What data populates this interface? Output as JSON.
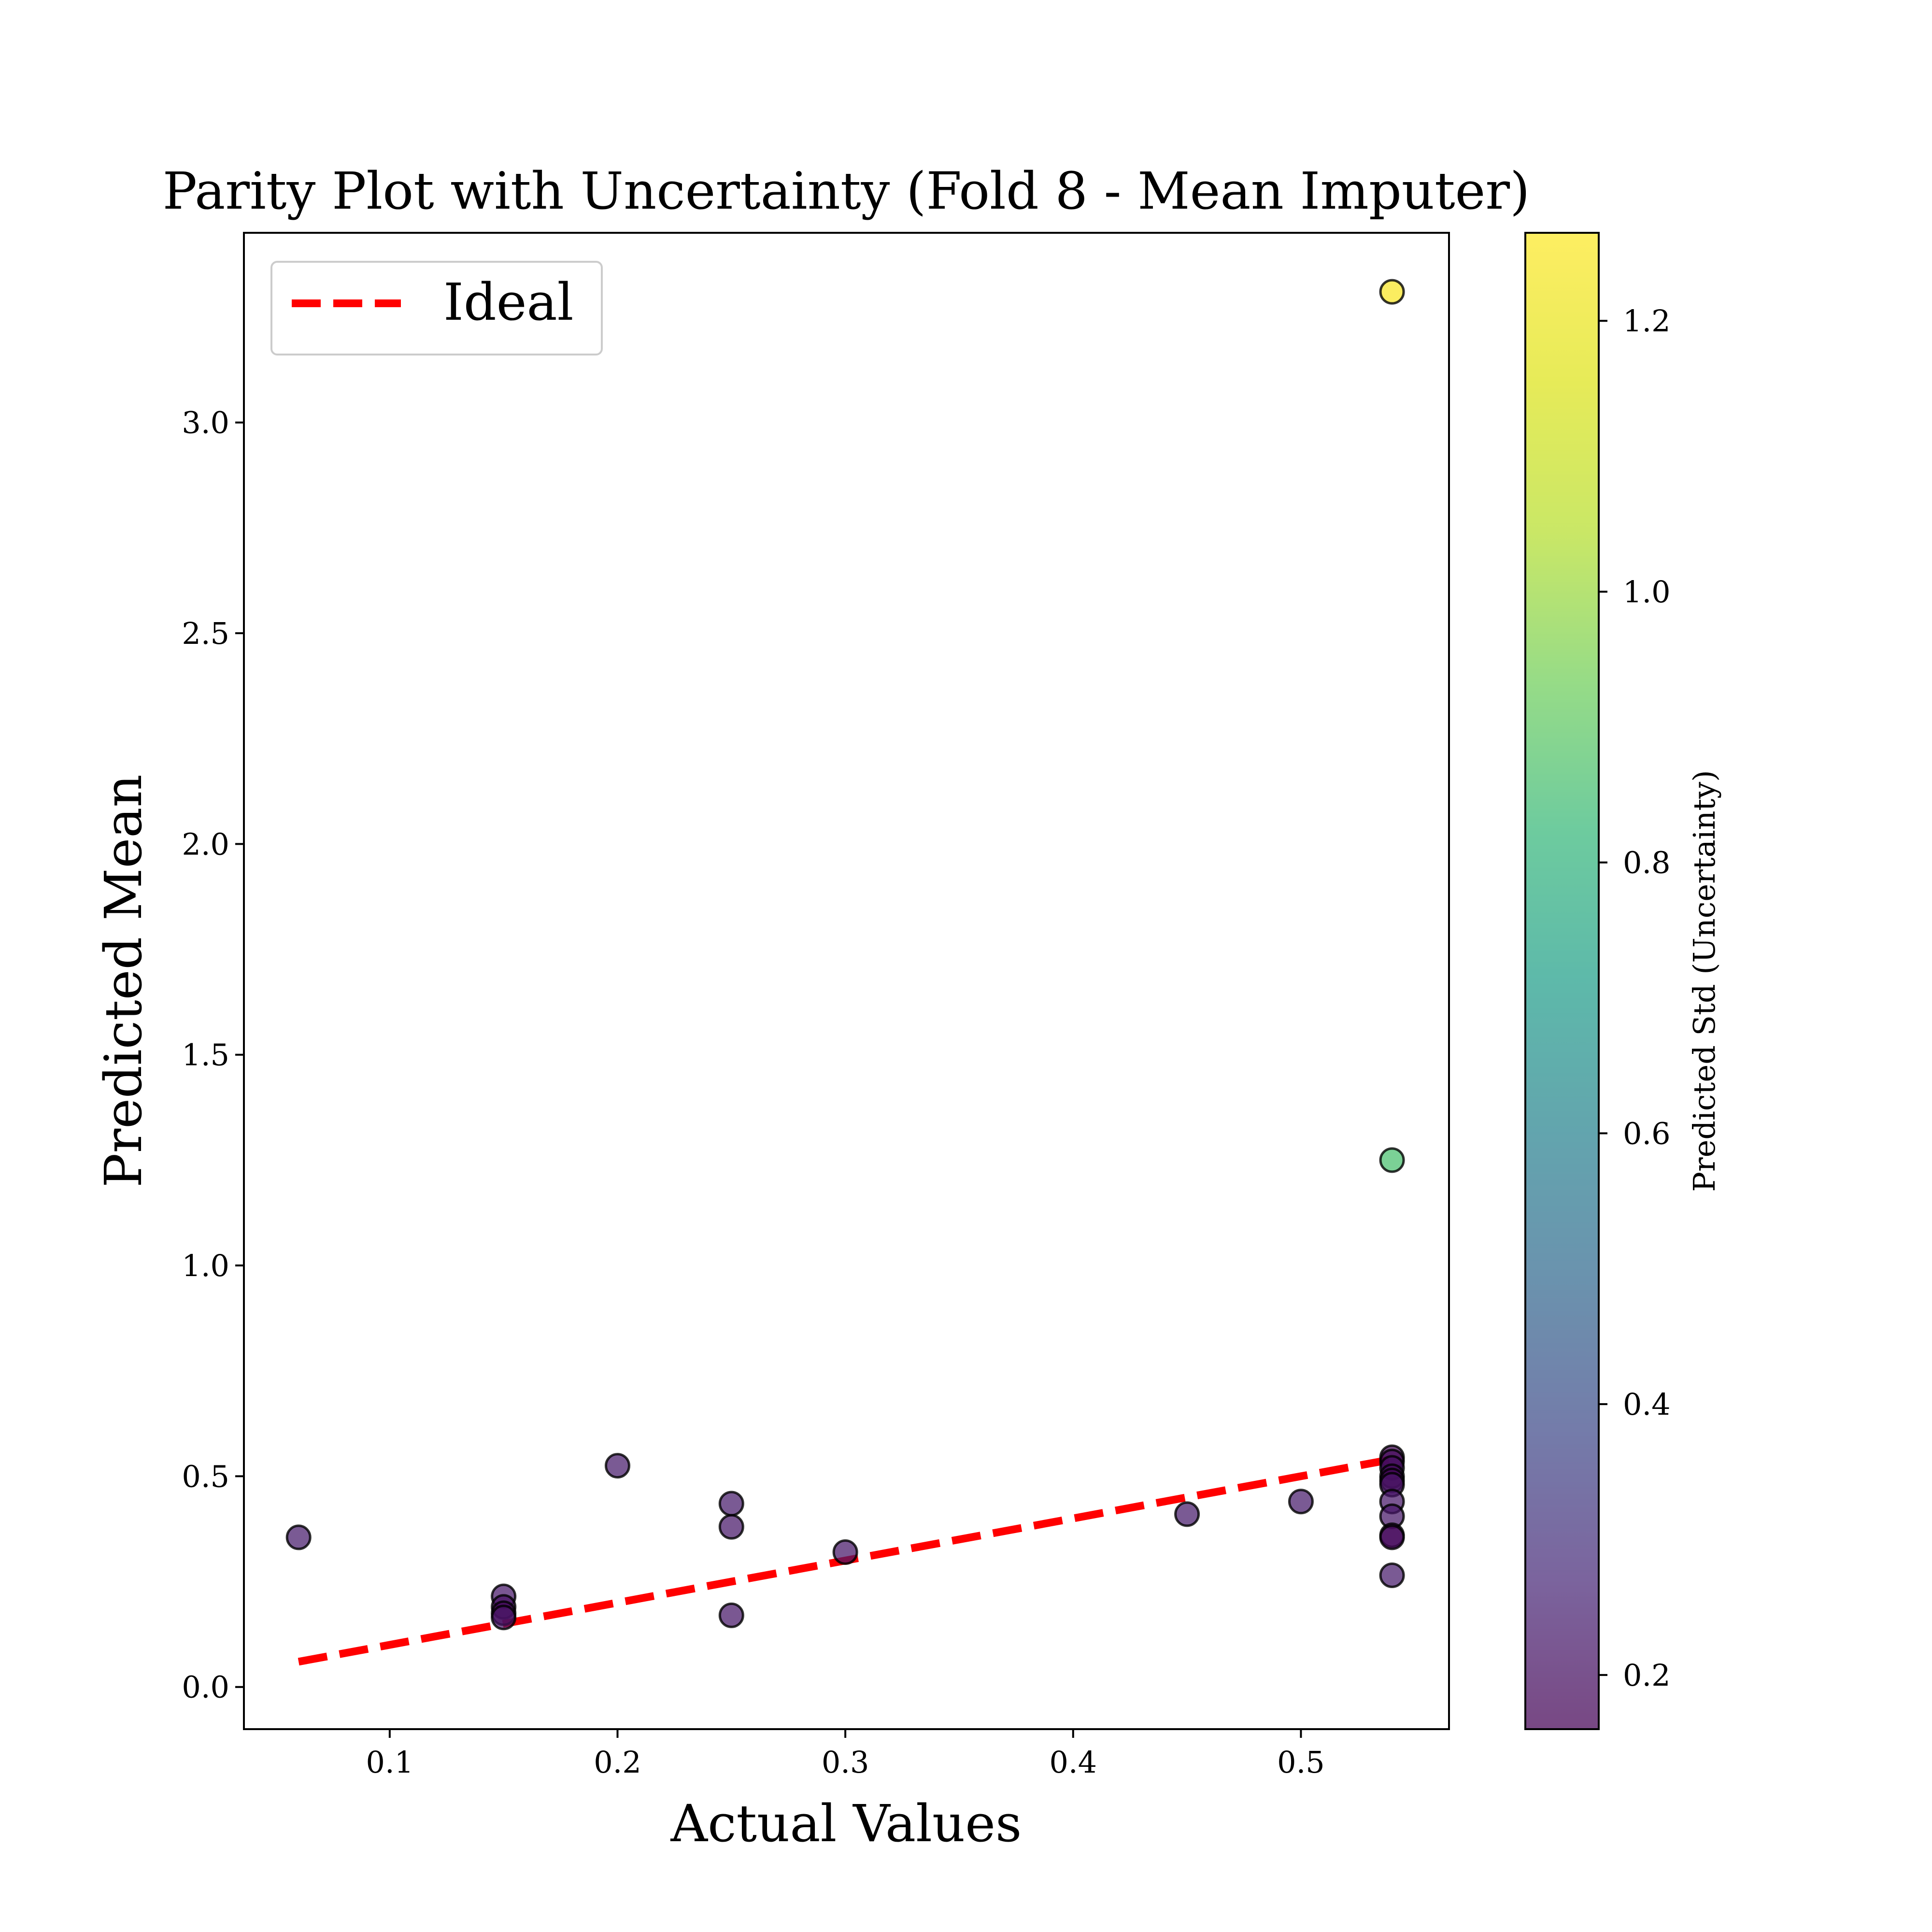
{
  "chart_data": {
    "type": "scatter",
    "title": "Parity Plot with Uncertainty (Fold 8 - Mean Imputer)",
    "xlabel": "Actual Values",
    "ylabel": "Predicted Mean",
    "xlim": [
      0.036,
      0.565
    ],
    "ylim": [
      -0.1,
      3.45
    ],
    "x_ticks": [
      0.1,
      0.2,
      0.3,
      0.4,
      0.5
    ],
    "x_tick_labels": [
      "0.1",
      "0.2",
      "0.3",
      "0.4",
      "0.5"
    ],
    "y_ticks": [
      0.0,
      0.5,
      1.0,
      1.5,
      2.0,
      2.5,
      3.0
    ],
    "y_tick_labels": [
      "0.0",
      "0.5",
      "1.0",
      "1.5",
      "2.0",
      "2.5",
      "3.0"
    ],
    "grid": false,
    "legend": {
      "placement": "upper-left",
      "entries": [
        "Ideal"
      ]
    },
    "ideal_line": {
      "label": "Ideal",
      "x": [
        0.06,
        0.54
      ],
      "y": [
        0.06,
        0.54
      ],
      "color": "#ff0000",
      "style": "dashed"
    },
    "colormap": "viridis",
    "colorbar": {
      "label": "Predicted Std (Uncertainty)",
      "range": [
        0.16,
        1.265
      ],
      "ticks": [
        0.2,
        0.4,
        0.6,
        0.8,
        1.0,
        1.2
      ],
      "tick_labels": [
        "0.2",
        "0.4",
        "0.6",
        "0.8",
        "1.0",
        "1.2"
      ]
    },
    "points": [
      {
        "x": 0.06,
        "y": 0.355,
        "std": 0.23
      },
      {
        "x": 0.15,
        "y": 0.215,
        "std": 0.22
      },
      {
        "x": 0.15,
        "y": 0.19,
        "std": 0.2
      },
      {
        "x": 0.15,
        "y": 0.175,
        "std": 0.18
      },
      {
        "x": 0.15,
        "y": 0.165,
        "std": 0.21
      },
      {
        "x": 0.2,
        "y": 0.525,
        "std": 0.23
      },
      {
        "x": 0.25,
        "y": 0.435,
        "std": 0.23
      },
      {
        "x": 0.25,
        "y": 0.38,
        "std": 0.22
      },
      {
        "x": 0.25,
        "y": 0.17,
        "std": 0.22
      },
      {
        "x": 0.3,
        "y": 0.32,
        "std": 0.22
      },
      {
        "x": 0.45,
        "y": 0.41,
        "std": 0.23
      },
      {
        "x": 0.5,
        "y": 0.44,
        "std": 0.23
      },
      {
        "x": 0.54,
        "y": 3.31,
        "std": 1.25
      },
      {
        "x": 0.54,
        "y": 1.25,
        "std": 0.86
      },
      {
        "x": 0.54,
        "y": 0.545,
        "std": 0.17
      },
      {
        "x": 0.54,
        "y": 0.535,
        "std": 0.18
      },
      {
        "x": 0.54,
        "y": 0.52,
        "std": 0.2
      },
      {
        "x": 0.54,
        "y": 0.5,
        "std": 0.19
      },
      {
        "x": 0.54,
        "y": 0.49,
        "std": 0.17
      },
      {
        "x": 0.54,
        "y": 0.48,
        "std": 0.21
      },
      {
        "x": 0.54,
        "y": 0.44,
        "std": 0.22
      },
      {
        "x": 0.54,
        "y": 0.405,
        "std": 0.22
      },
      {
        "x": 0.54,
        "y": 0.36,
        "std": 0.19
      },
      {
        "x": 0.54,
        "y": 0.355,
        "std": 0.18
      },
      {
        "x": 0.54,
        "y": 0.265,
        "std": 0.23
      }
    ]
  }
}
